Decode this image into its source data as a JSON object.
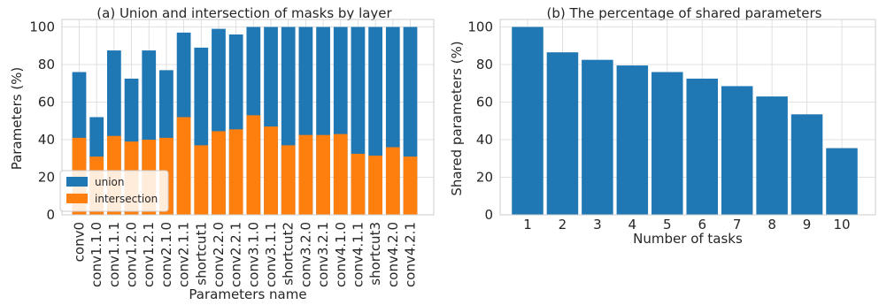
{
  "chart_data": [
    {
      "type": "bar",
      "title": "(a) Union and intersection of masks by layer",
      "xlabel": "Parameters name",
      "ylabel": "Parameters (%)",
      "ylim": [
        0,
        104
      ],
      "yticks": [
        0,
        20,
        40,
        60,
        80,
        100
      ],
      "grid": true,
      "legend_position": "lower-left",
      "stacked_overlay": true,
      "categories": [
        "conv0",
        "conv1.1.0",
        "conv1.1.1",
        "conv1.2.0",
        "conv1.2.1",
        "conv2.1.0",
        "conv2.1.1",
        "shortcut1",
        "conv2.2.0",
        "conv2.2.1",
        "conv3.1.0",
        "conv3.1.1",
        "shortcut2",
        "conv3.2.0",
        "conv3.2.1",
        "conv4.1.0",
        "conv4.1.1",
        "shortcut3",
        "conv4.2.0",
        "conv4.2.1"
      ],
      "series": [
        {
          "name": "union",
          "color": "#1f77b4",
          "values": [
            76,
            52,
            87.5,
            72.5,
            87.5,
            77,
            97,
            89,
            99,
            96,
            100,
            100,
            100,
            100,
            100,
            100,
            100,
            100,
            100,
            100
          ]
        },
        {
          "name": "intersection",
          "color": "#ff7f0e",
          "values": [
            41,
            31,
            42,
            39,
            40,
            41,
            52,
            37,
            44.5,
            45.5,
            53,
            47,
            37,
            42.5,
            42.5,
            43,
            32.5,
            31.5,
            36,
            31
          ]
        }
      ]
    },
    {
      "type": "bar",
      "title": "(b) The percentage of shared parameters",
      "xlabel": "Number of tasks",
      "ylabel": "Shared parameters (%)",
      "ylim": [
        0,
        104
      ],
      "yticks": [
        0,
        20,
        40,
        60,
        80,
        100
      ],
      "grid": true,
      "color": "#1f77b4",
      "categories": [
        "1",
        "2",
        "3",
        "4",
        "5",
        "6",
        "7",
        "8",
        "9",
        "10"
      ],
      "values": [
        100,
        86.5,
        82.5,
        79.5,
        76,
        72.5,
        68.5,
        63,
        53.5,
        35.5
      ]
    }
  ]
}
